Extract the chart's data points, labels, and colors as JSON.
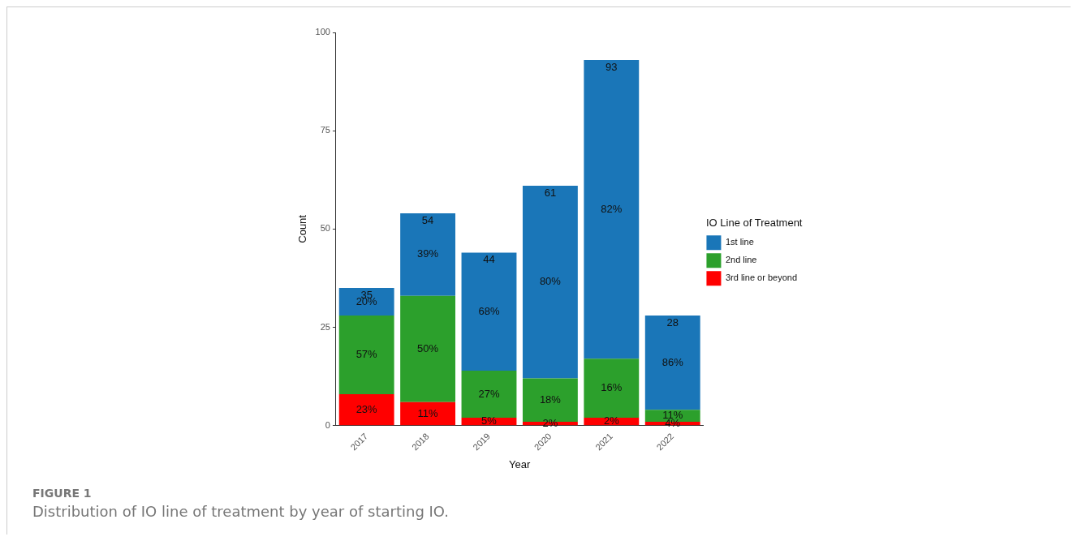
{
  "chart_data": {
    "type": "bar",
    "stacked": true,
    "xlabel": "Year",
    "ylabel": "Count",
    "legend_title": "IO Line of Treatment",
    "legend": "right",
    "categories": [
      "2017",
      "2018",
      "2019",
      "2020",
      "2021",
      "2022"
    ],
    "series": [
      {
        "name": "3rd line or beyond",
        "color": "#ff0000",
        "values": [
          8,
          6,
          2,
          1,
          2,
          1
        ]
      },
      {
        "name": "2nd line",
        "color": "#2ca02c",
        "values": [
          20,
          27,
          12,
          11,
          15,
          3
        ]
      },
      {
        "name": "1st line",
        "color": "#1a76b8",
        "values": [
          7,
          21,
          30,
          49,
          76,
          24
        ]
      }
    ],
    "totals": [
      "35",
      "54",
      "44",
      "61",
      "93",
      "28"
    ],
    "ylim": [
      0,
      100
    ],
    "yticks": [
      0,
      25,
      50,
      75,
      100
    ],
    "grid": false,
    "title": "FIGURE 1",
    "subtitle": "Distribution of IO line of treatment by year of starting IO.",
    "annotations": [
      "23%",
      "57%",
      "20%",
      "11%",
      "50%",
      "39%",
      "5%",
      "27%",
      "68%",
      "2%",
      "18%",
      "80%",
      "2%",
      "16%",
      "82%",
      "4%",
      "11%",
      "86%"
    ]
  }
}
